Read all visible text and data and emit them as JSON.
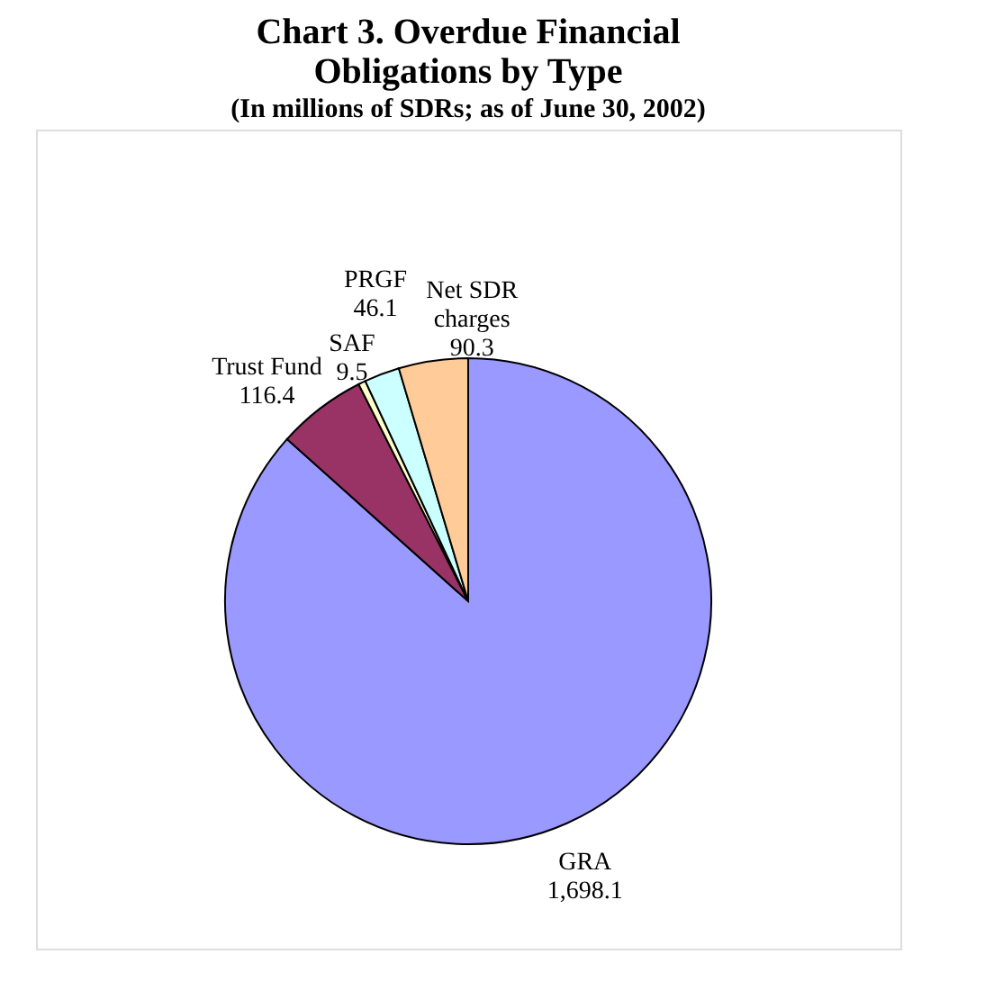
{
  "chart_data": {
    "type": "pie",
    "title": "Chart 3.  Overdue Financial Obligations by Type",
    "subtitle": "(In millions of SDRs; as of June 30, 2002)",
    "categories": [
      "GRA",
      "Trust Fund",
      "SAF",
      "PRGF",
      "Net SDR charges"
    ],
    "values": [
      1698.1,
      116.4,
      9.5,
      46.1,
      90.3
    ],
    "colors": [
      "#9999ff",
      "#993366",
      "#ffffcc",
      "#ccffff",
      "#ffcc99"
    ],
    "value_labels": [
      "1,698.1",
      "116.4",
      "9.5",
      "46.1",
      "90.3"
    ],
    "legend": false
  }
}
